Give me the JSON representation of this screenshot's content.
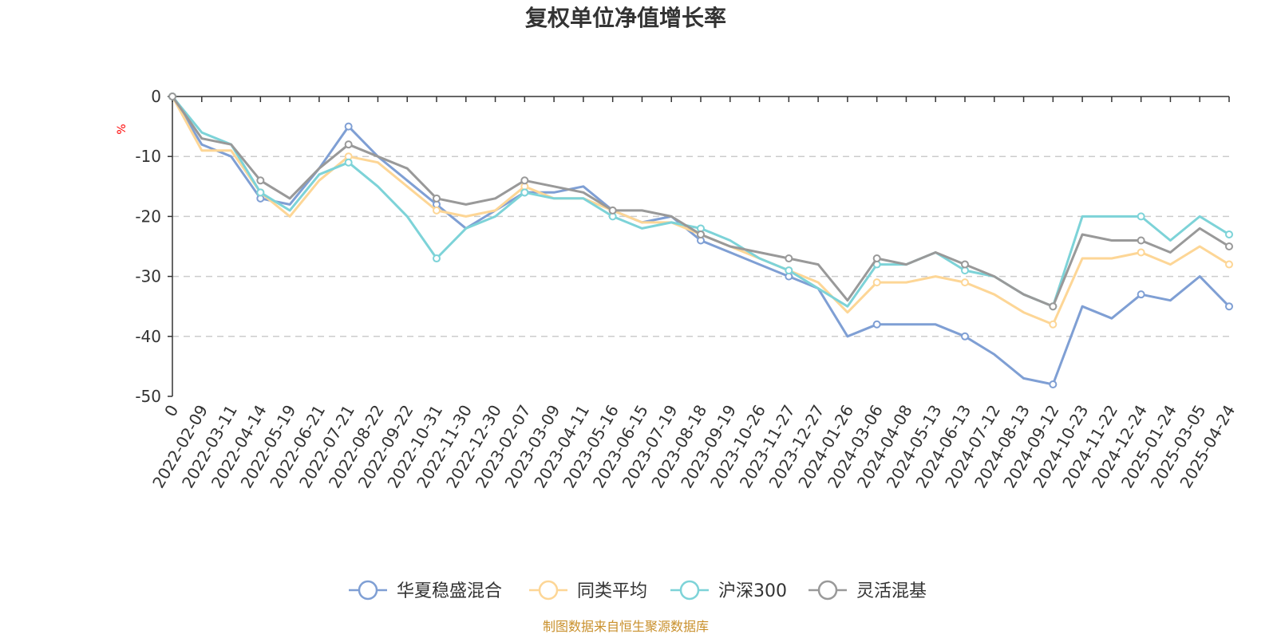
{
  "chart_data": {
    "type": "line",
    "title": "复权单位净值增长率",
    "ylabel": "%",
    "xlabel": "",
    "ylim": [
      -50,
      0
    ],
    "yticks": [
      0,
      -10,
      -20,
      -30,
      -40,
      -50
    ],
    "grid": true,
    "legend_position": "bottom",
    "source": "制图数据来自恒生聚源数据库",
    "categories": [
      "0",
      "2022-02-09",
      "2022-03-11",
      "2022-04-14",
      "2022-05-19",
      "2022-06-21",
      "2022-07-21",
      "2022-08-22",
      "2022-09-22",
      "2022-10-31",
      "2022-11-30",
      "2022-12-30",
      "2023-02-07",
      "2023-03-09",
      "2023-04-11",
      "2023-05-16",
      "2023-06-15",
      "2023-07-19",
      "2023-08-18",
      "2023-09-19",
      "2023-10-26",
      "2023-11-27",
      "2023-12-27",
      "2024-01-26",
      "2024-03-06",
      "2024-04-08",
      "2024-05-13",
      "2024-06-13",
      "2024-07-12",
      "2024-08-13",
      "2024-09-12",
      "2024-10-23",
      "2024-11-22",
      "2024-12-24",
      "2025-01-24",
      "2025-03-05",
      "2025-04-24"
    ],
    "series": [
      {
        "name": "华夏稳盛混合",
        "color": "#7f9fd4",
        "values": [
          0,
          -8,
          -10,
          -17,
          -18,
          -12,
          -5,
          -10,
          -14,
          -18,
          -22,
          -19,
          -16,
          -16,
          -15,
          -19,
          -21,
          -20,
          -24,
          -26,
          -28,
          -30,
          -32,
          -40,
          -38,
          -38,
          -38,
          -40,
          -43,
          -47,
          -48,
          -35,
          -37,
          -33,
          -34,
          -30,
          -35
        ]
      },
      {
        "name": "同类平均",
        "color": "#fdd696",
        "values": [
          0,
          -9,
          -9,
          -16,
          -20,
          -14,
          -10,
          -11,
          -15,
          -19,
          -20,
          -19,
          -15,
          -17,
          -17,
          -19,
          -21,
          -21,
          -23,
          -25,
          -27,
          -29,
          -31,
          -36,
          -31,
          -31,
          -30,
          -31,
          -33,
          -36,
          -38,
          -27,
          -27,
          -26,
          -28,
          -25,
          -28
        ]
      },
      {
        "name": "沪深300",
        "color": "#7dd3d8",
        "values": [
          0,
          -6,
          -8,
          -16,
          -19,
          -13,
          -11,
          -15,
          -20,
          -27,
          -22,
          -20,
          -16,
          -17,
          -17,
          -20,
          -22,
          -21,
          -22,
          -24,
          -27,
          -29,
          -32,
          -35,
          -28,
          -28,
          -26,
          -29,
          -30,
          -33,
          -35,
          -20,
          -20,
          -20,
          -24,
          -20,
          -23
        ]
      },
      {
        "name": "灵活混基",
        "color": "#999999",
        "values": [
          0,
          -7,
          -8,
          -14,
          -17,
          -12,
          -8,
          -10,
          -12,
          -17,
          -18,
          -17,
          -14,
          -15,
          -16,
          -19,
          -19,
          -20,
          -23,
          -25,
          -26,
          -27,
          -28,
          -34,
          -27,
          -28,
          -26,
          -28,
          -30,
          -33,
          -35,
          -23,
          -24,
          -24,
          -26,
          -22,
          -25
        ]
      }
    ]
  }
}
